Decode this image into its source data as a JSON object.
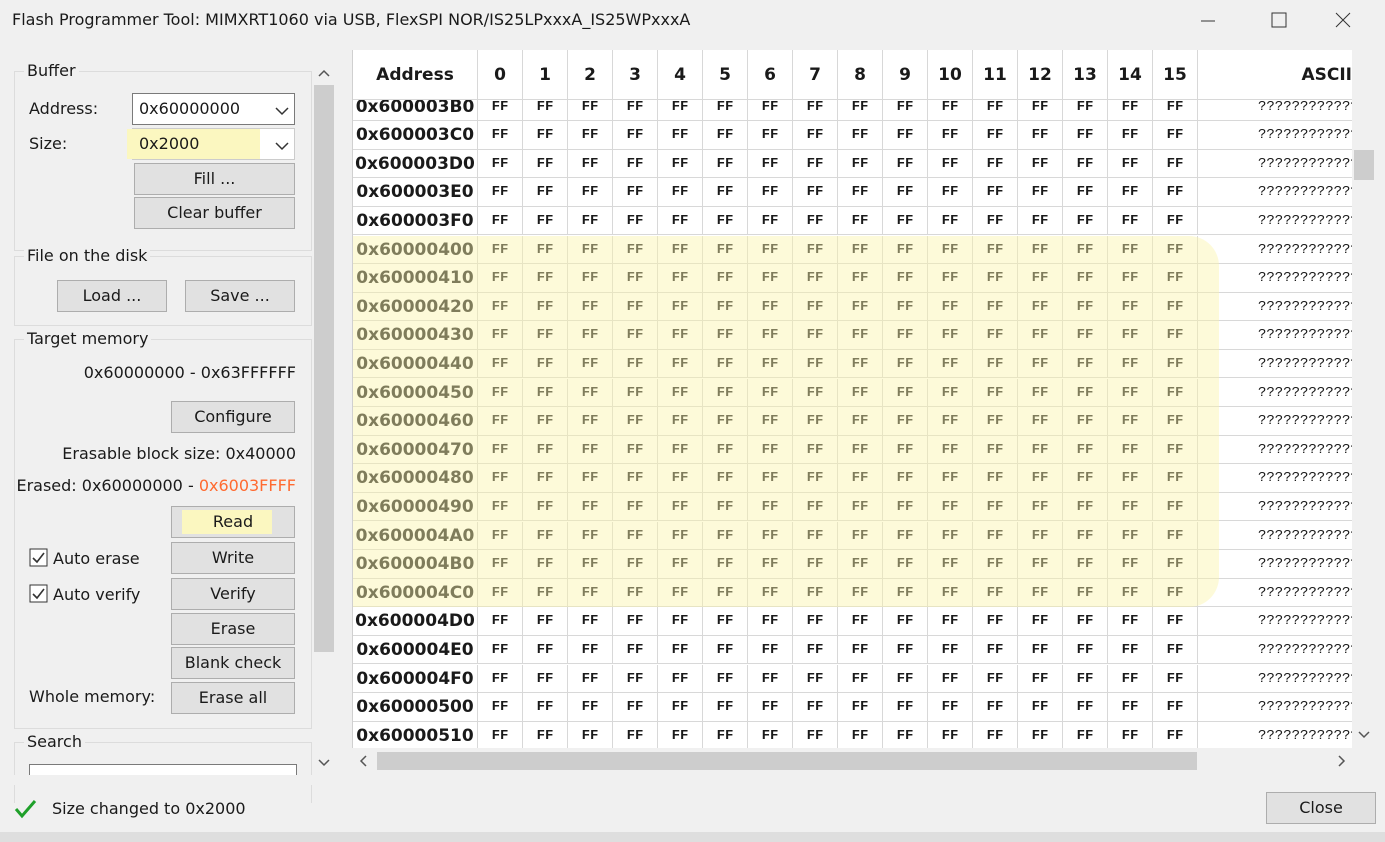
{
  "window": {
    "title": "Flash Programmer Tool:   MIMXRT1060 via USB,   FlexSPI NOR/IS25LPxxxA_IS25WPxxxA"
  },
  "buffer": {
    "title": "Buffer",
    "address_label": "Address:",
    "address_value": "0x60000000",
    "size_label": "Size:",
    "size_value": "0x2000",
    "fill_button": "Fill ...",
    "clear_button": "Clear buffer"
  },
  "file": {
    "title": "File on the disk",
    "load_button": "Load ...",
    "save_button": "Save ..."
  },
  "target": {
    "title": "Target memory",
    "range": "0x60000000 - 0x63FFFFFF",
    "configure_button": "Configure",
    "erasable": "Erasable block size: 0x40000",
    "erased_label": "Erased: 0x60000000 - ",
    "erased_end": "0x6003FFFF",
    "read_button": "Read",
    "write_button": "Write",
    "verify_button": "Verify",
    "erase_button": "Erase",
    "blank_check_button": "Blank check",
    "erase_all_button": "Erase all",
    "auto_erase": "Auto erase",
    "auto_verify": "Auto verify",
    "whole_memory": "Whole memory:"
  },
  "search": {
    "title": "Search"
  },
  "table": {
    "columns": [
      "Address",
      "0",
      "1",
      "2",
      "3",
      "4",
      "5",
      "6",
      "7",
      "8",
      "9",
      "10",
      "11",
      "12",
      "13",
      "14",
      "15",
      "ASCII"
    ],
    "rows": [
      {
        "address": "0x600003B0",
        "bytes": [
          "FF",
          "FF",
          "FF",
          "FF",
          "FF",
          "FF",
          "FF",
          "FF",
          "FF",
          "FF",
          "FF",
          "FF",
          "FF",
          "FF",
          "FF",
          "FF"
        ],
        "ascii": "????????????????"
      },
      {
        "address": "0x600003C0",
        "bytes": [
          "FF",
          "FF",
          "FF",
          "FF",
          "FF",
          "FF",
          "FF",
          "FF",
          "FF",
          "FF",
          "FF",
          "FF",
          "FF",
          "FF",
          "FF",
          "FF"
        ],
        "ascii": "????????????????"
      },
      {
        "address": "0x600003D0",
        "bytes": [
          "FF",
          "FF",
          "FF",
          "FF",
          "FF",
          "FF",
          "FF",
          "FF",
          "FF",
          "FF",
          "FF",
          "FF",
          "FF",
          "FF",
          "FF",
          "FF"
        ],
        "ascii": "????????????????"
      },
      {
        "address": "0x600003E0",
        "bytes": [
          "FF",
          "FF",
          "FF",
          "FF",
          "FF",
          "FF",
          "FF",
          "FF",
          "FF",
          "FF",
          "FF",
          "FF",
          "FF",
          "FF",
          "FF",
          "FF"
        ],
        "ascii": "????????????????"
      },
      {
        "address": "0x600003F0",
        "bytes": [
          "FF",
          "FF",
          "FF",
          "FF",
          "FF",
          "FF",
          "FF",
          "FF",
          "FF",
          "FF",
          "FF",
          "FF",
          "FF",
          "FF",
          "FF",
          "FF"
        ],
        "ascii": "????????????????"
      },
      {
        "address": "0x60000400",
        "bytes": [
          "FF",
          "FF",
          "FF",
          "FF",
          "FF",
          "FF",
          "FF",
          "FF",
          "FF",
          "FF",
          "FF",
          "FF",
          "FF",
          "FF",
          "FF",
          "FF"
        ],
        "ascii": "????????????????"
      },
      {
        "address": "0x60000410",
        "bytes": [
          "FF",
          "FF",
          "FF",
          "FF",
          "FF",
          "FF",
          "FF",
          "FF",
          "FF",
          "FF",
          "FF",
          "FF",
          "FF",
          "FF",
          "FF",
          "FF"
        ],
        "ascii": "????????????????"
      },
      {
        "address": "0x60000420",
        "bytes": [
          "FF",
          "FF",
          "FF",
          "FF",
          "FF",
          "FF",
          "FF",
          "FF",
          "FF",
          "FF",
          "FF",
          "FF",
          "FF",
          "FF",
          "FF",
          "FF"
        ],
        "ascii": "????????????????"
      },
      {
        "address": "0x60000430",
        "bytes": [
          "FF",
          "FF",
          "FF",
          "FF",
          "FF",
          "FF",
          "FF",
          "FF",
          "FF",
          "FF",
          "FF",
          "FF",
          "FF",
          "FF",
          "FF",
          "FF"
        ],
        "ascii": "????????????????"
      },
      {
        "address": "0x60000440",
        "bytes": [
          "FF",
          "FF",
          "FF",
          "FF",
          "FF",
          "FF",
          "FF",
          "FF",
          "FF",
          "FF",
          "FF",
          "FF",
          "FF",
          "FF",
          "FF",
          "FF"
        ],
        "ascii": "????????????????"
      },
      {
        "address": "0x60000450",
        "bytes": [
          "FF",
          "FF",
          "FF",
          "FF",
          "FF",
          "FF",
          "FF",
          "FF",
          "FF",
          "FF",
          "FF",
          "FF",
          "FF",
          "FF",
          "FF",
          "FF"
        ],
        "ascii": "????????????????"
      },
      {
        "address": "0x60000460",
        "bytes": [
          "FF",
          "FF",
          "FF",
          "FF",
          "FF",
          "FF",
          "FF",
          "FF",
          "FF",
          "FF",
          "FF",
          "FF",
          "FF",
          "FF",
          "FF",
          "FF"
        ],
        "ascii": "????????????????"
      },
      {
        "address": "0x60000470",
        "bytes": [
          "FF",
          "FF",
          "FF",
          "FF",
          "FF",
          "FF",
          "FF",
          "FF",
          "FF",
          "FF",
          "FF",
          "FF",
          "FF",
          "FF",
          "FF",
          "FF"
        ],
        "ascii": "????????????????"
      },
      {
        "address": "0x60000480",
        "bytes": [
          "FF",
          "FF",
          "FF",
          "FF",
          "FF",
          "FF",
          "FF",
          "FF",
          "FF",
          "FF",
          "FF",
          "FF",
          "FF",
          "FF",
          "FF",
          "FF"
        ],
        "ascii": "????????????????"
      },
      {
        "address": "0x60000490",
        "bytes": [
          "FF",
          "FF",
          "FF",
          "FF",
          "FF",
          "FF",
          "FF",
          "FF",
          "FF",
          "FF",
          "FF",
          "FF",
          "FF",
          "FF",
          "FF",
          "FF"
        ],
        "ascii": "????????????????"
      },
      {
        "address": "0x600004A0",
        "bytes": [
          "FF",
          "FF",
          "FF",
          "FF",
          "FF",
          "FF",
          "FF",
          "FF",
          "FF",
          "FF",
          "FF",
          "FF",
          "FF",
          "FF",
          "FF",
          "FF"
        ],
        "ascii": "????????????????"
      },
      {
        "address": "0x600004B0",
        "bytes": [
          "FF",
          "FF",
          "FF",
          "FF",
          "FF",
          "FF",
          "FF",
          "FF",
          "FF",
          "FF",
          "FF",
          "FF",
          "FF",
          "FF",
          "FF",
          "FF"
        ],
        "ascii": "????????????????"
      },
      {
        "address": "0x600004C0",
        "bytes": [
          "FF",
          "FF",
          "FF",
          "FF",
          "FF",
          "FF",
          "FF",
          "FF",
          "FF",
          "FF",
          "FF",
          "FF",
          "FF",
          "FF",
          "FF",
          "FF"
        ],
        "ascii": "????????????????"
      },
      {
        "address": "0x600004D0",
        "bytes": [
          "FF",
          "FF",
          "FF",
          "FF",
          "FF",
          "FF",
          "FF",
          "FF",
          "FF",
          "FF",
          "FF",
          "FF",
          "FF",
          "FF",
          "FF",
          "FF"
        ],
        "ascii": "????????????????"
      },
      {
        "address": "0x600004E0",
        "bytes": [
          "FF",
          "FF",
          "FF",
          "FF",
          "FF",
          "FF",
          "FF",
          "FF",
          "FF",
          "FF",
          "FF",
          "FF",
          "FF",
          "FF",
          "FF",
          "FF"
        ],
        "ascii": "????????????????"
      },
      {
        "address": "0x600004F0",
        "bytes": [
          "FF",
          "FF",
          "FF",
          "FF",
          "FF",
          "FF",
          "FF",
          "FF",
          "FF",
          "FF",
          "FF",
          "FF",
          "FF",
          "FF",
          "FF",
          "FF"
        ],
        "ascii": "????????????????"
      },
      {
        "address": "0x60000500",
        "bytes": [
          "FF",
          "FF",
          "FF",
          "FF",
          "FF",
          "FF",
          "FF",
          "FF",
          "FF",
          "FF",
          "FF",
          "FF",
          "FF",
          "FF",
          "FF",
          "FF"
        ],
        "ascii": "????????????????"
      },
      {
        "address": "0x60000510",
        "bytes": [
          "FF",
          "FF",
          "FF",
          "FF",
          "FF",
          "FF",
          "FF",
          "FF",
          "FF",
          "FF",
          "FF",
          "FF",
          "FF",
          "FF",
          "FF",
          "FF"
        ],
        "ascii": "????????????????"
      }
    ]
  },
  "status": {
    "message": "Size changed to 0x2000",
    "close_button": "Close"
  }
}
